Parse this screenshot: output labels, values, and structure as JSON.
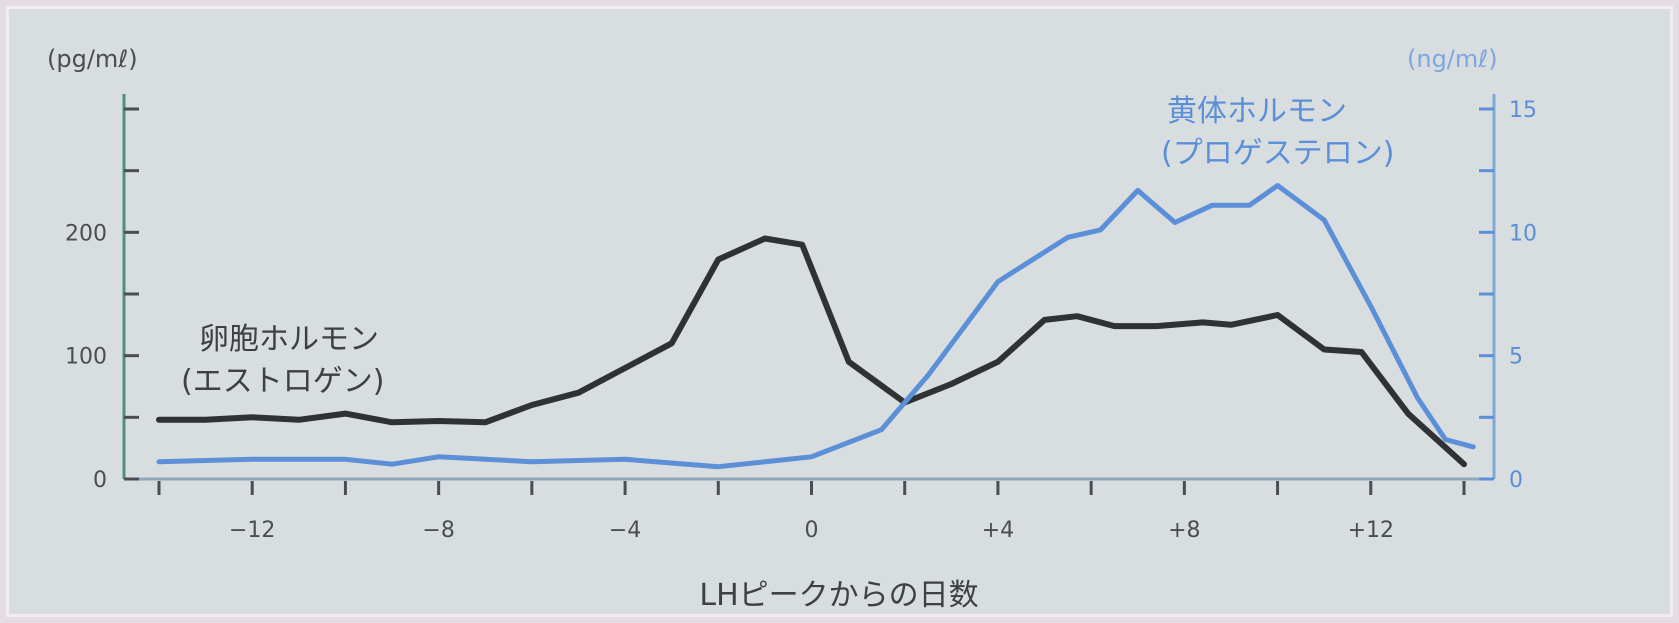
{
  "chart_data": {
    "type": "line",
    "xlabel": "LHピークからの日数",
    "ylabel_left_unit": "(pg/mℓ)",
    "ylabel_right_unit": "(ng/mℓ)",
    "xlim": [
      -14,
      14
    ],
    "ylim_left": [
      0,
      300
    ],
    "ylim_right": [
      0,
      15
    ],
    "x_ticks": [
      -14,
      -13,
      -12,
      -11,
      -10,
      -9,
      -8,
      -7,
      -6,
      -5,
      -4,
      -3,
      -2,
      -1,
      0,
      1,
      2,
      3,
      4,
      5,
      6,
      7,
      8,
      9,
      10,
      11,
      12,
      13,
      14
    ],
    "x_tick_labels": [
      {
        "x": -12,
        "label": "−12"
      },
      {
        "x": -8,
        "label": "−8"
      },
      {
        "x": -4,
        "label": "−4"
      },
      {
        "x": 0,
        "label": "0"
      },
      {
        "x": 4,
        "label": "+4"
      },
      {
        "x": 8,
        "label": "+8"
      },
      {
        "x": 12,
        "label": "+12"
      }
    ],
    "y_left_ticks": [
      0,
      50,
      100,
      150,
      200,
      250,
      300
    ],
    "y_left_tick_labels": [
      {
        "y": 0,
        "label": "0"
      },
      {
        "y": 100,
        "label": "100"
      },
      {
        "y": 200,
        "label": "200"
      }
    ],
    "y_right_ticks": [
      0,
      2.5,
      5,
      7.5,
      10,
      12.5,
      15
    ],
    "y_right_tick_labels": [
      {
        "y": 0,
        "label": "0"
      },
      {
        "y": 5,
        "label": "5"
      },
      {
        "y": 10,
        "label": "10"
      },
      {
        "y": 15,
        "label": "15"
      }
    ],
    "series": [
      {
        "name_line1": "卵胞ホルモン",
        "name_line2": "(エストロゲン)",
        "axis": "left",
        "color": "#2f3133",
        "points": [
          [
            -14,
            48
          ],
          [
            -13,
            48
          ],
          [
            -12,
            50
          ],
          [
            -11,
            48
          ],
          [
            -10,
            53
          ],
          [
            -9,
            46
          ],
          [
            -8,
            47
          ],
          [
            -7,
            46
          ],
          [
            -6,
            60
          ],
          [
            -5,
            70
          ],
          [
            -4,
            90
          ],
          [
            -3,
            110
          ],
          [
            -2,
            178
          ],
          [
            -1,
            195
          ],
          [
            -0.2,
            190
          ],
          [
            0.8,
            95
          ],
          [
            2,
            62
          ],
          [
            3,
            77
          ],
          [
            4,
            95
          ],
          [
            5,
            129
          ],
          [
            5.7,
            132
          ],
          [
            6.5,
            124
          ],
          [
            7.4,
            124
          ],
          [
            8.4,
            127
          ],
          [
            9,
            125
          ],
          [
            10,
            133
          ],
          [
            11,
            105
          ],
          [
            11.8,
            103
          ],
          [
            12.8,
            53
          ],
          [
            14,
            12
          ]
        ]
      },
      {
        "name_line1": "黄体ホルモン",
        "name_line2": "(プロゲステロン)",
        "axis": "right",
        "color": "#5b8fd8",
        "points": [
          [
            -14,
            0.7
          ],
          [
            -12,
            0.8
          ],
          [
            -10,
            0.8
          ],
          [
            -9,
            0.6
          ],
          [
            -8,
            0.9
          ],
          [
            -6,
            0.7
          ],
          [
            -4,
            0.8
          ],
          [
            -2,
            0.5
          ],
          [
            0,
            0.9
          ],
          [
            1.5,
            2.0
          ],
          [
            2.5,
            4.2
          ],
          [
            4,
            8.0
          ],
          [
            5.5,
            9.8
          ],
          [
            6.2,
            10.1
          ],
          [
            7,
            11.7
          ],
          [
            7.8,
            10.4
          ],
          [
            8.6,
            11.1
          ],
          [
            9.4,
            11.1
          ],
          [
            10,
            11.9
          ],
          [
            11,
            10.5
          ],
          [
            12,
            7.0
          ],
          [
            13,
            3.3
          ],
          [
            13.6,
            1.6
          ],
          [
            14.2,
            1.3
          ]
        ]
      }
    ]
  }
}
